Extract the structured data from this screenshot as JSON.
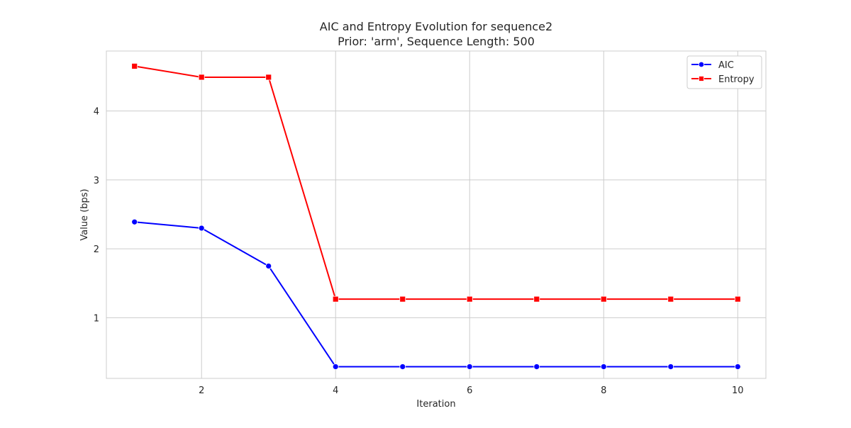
{
  "chart_data": {
    "type": "line",
    "title": "AIC and Entropy Evolution for sequence2",
    "subtitle": "Prior: 'arm', Sequence Length: 500",
    "xlabel": "Iteration",
    "ylabel": "Value (bps)",
    "x": [
      1,
      2,
      3,
      4,
      5,
      6,
      7,
      8,
      9,
      10
    ],
    "xlim": [
      0.58,
      10.42
    ],
    "ylim": [
      0.12,
      4.87
    ],
    "xticks": [
      2,
      4,
      6,
      8,
      10
    ],
    "yticks": [
      1,
      2,
      3,
      4
    ],
    "grid": true,
    "legend_position": "top-right",
    "series": [
      {
        "name": "AIC",
        "color": "#0000ff",
        "marker": "circle",
        "values": [
          2.39,
          2.3,
          1.75,
          0.29,
          0.29,
          0.29,
          0.29,
          0.29,
          0.29,
          0.29
        ]
      },
      {
        "name": "Entropy",
        "color": "#ff0000",
        "marker": "square",
        "values": [
          4.65,
          4.49,
          4.49,
          1.27,
          1.27,
          1.27,
          1.27,
          1.27,
          1.27,
          1.27
        ]
      }
    ]
  }
}
